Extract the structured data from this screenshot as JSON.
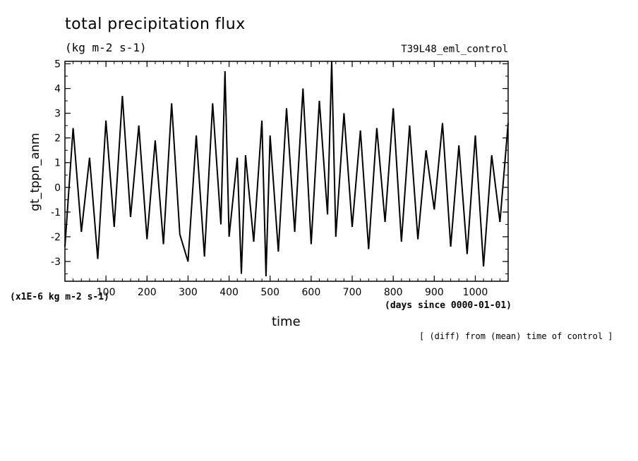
{
  "header": {
    "title": "total precipitation flux",
    "units": "(kg m-2 s-1)",
    "run": "T39L48_eml_control"
  },
  "axis_text": {
    "ylabel": "gt_tppn_anm",
    "scale": "(x1E-6 kg m-2 s-1)",
    "xlabel": "time",
    "xunits": "(days since 0000-01-01)"
  },
  "footnote": "[ (diff) from (mean) time of control ]",
  "chart_data": {
    "type": "line",
    "xlabel": "time",
    "ylabel": "gt_tppn_anm",
    "xlim": [
      0,
      1080
    ],
    "ylim": [
      -3.8,
      5.1
    ],
    "xticks": [
      100,
      200,
      300,
      400,
      500,
      600,
      700,
      800,
      900,
      1000
    ],
    "yticks": [
      -3,
      -2,
      -1,
      0,
      1,
      2,
      3,
      4,
      5
    ],
    "grid": false,
    "line_color": "#000000",
    "series": [
      {
        "x": [
          0,
          20,
          40,
          60,
          80,
          100,
          120,
          140,
          160,
          180,
          200,
          220,
          240,
          260,
          280,
          300,
          320,
          340,
          360,
          380,
          390,
          400,
          420,
          430,
          440,
          460,
          480,
          490,
          500,
          520,
          540,
          560,
          580,
          600,
          620,
          640,
          650,
          660,
          680,
          700,
          720,
          740,
          760,
          780,
          800,
          820,
          840,
          860,
          880,
          900,
          920,
          940,
          960,
          980,
          1000,
          1020,
          1040,
          1060,
          1080
        ],
        "values": [
          -2.4,
          2.4,
          -1.8,
          1.2,
          -2.9,
          2.7,
          -1.6,
          3.7,
          -1.2,
          2.5,
          -2.1,
          1.9,
          -2.3,
          3.4,
          -1.9,
          -3.0,
          2.1,
          -2.8,
          3.4,
          -1.5,
          4.7,
          -2.0,
          1.2,
          -3.5,
          1.3,
          -2.2,
          2.7,
          -3.6,
          2.1,
          -2.6,
          3.2,
          -1.8,
          4.0,
          -2.3,
          3.5,
          -1.1,
          5.1,
          -2.0,
          3.0,
          -1.6,
          2.3,
          -2.5,
          2.4,
          -1.4,
          3.2,
          -2.2,
          2.5,
          -2.1,
          1.5,
          -0.9,
          2.6,
          -2.4,
          1.7,
          -2.7,
          2.1,
          -3.2,
          1.3,
          -1.4,
          2.6
        ]
      }
    ]
  }
}
